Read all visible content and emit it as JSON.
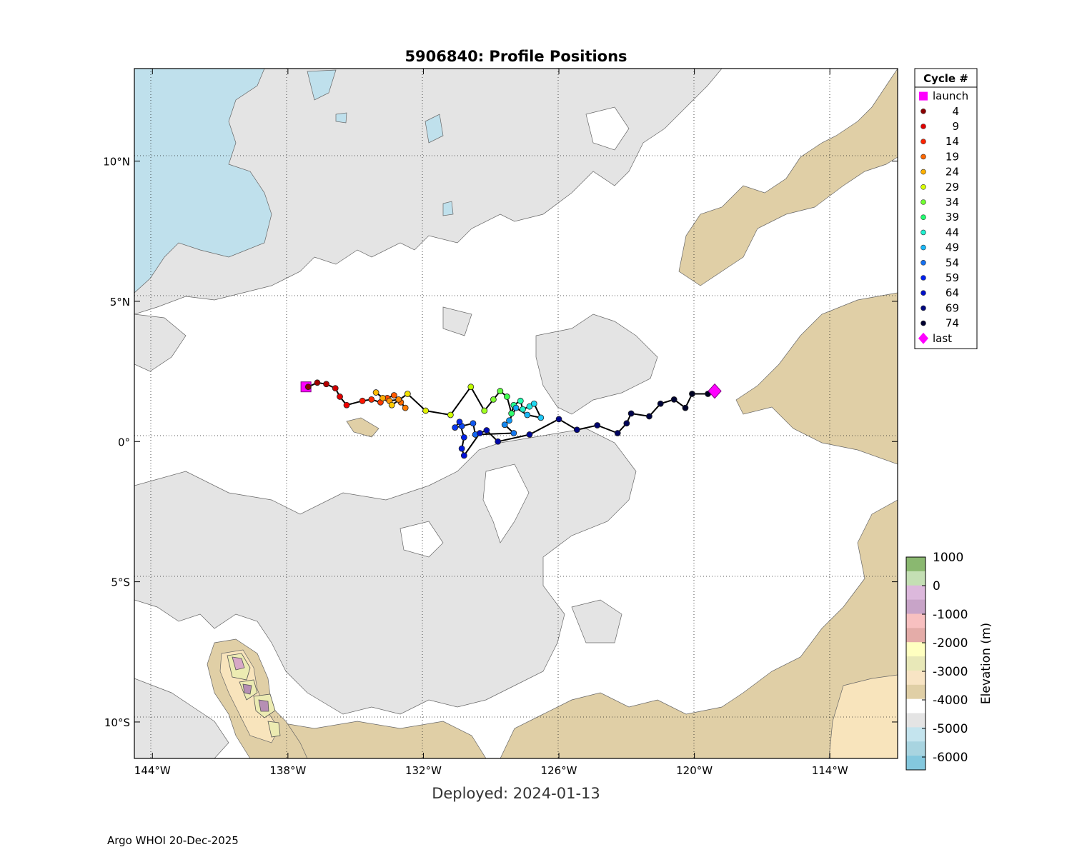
{
  "title": "5906840: Profile Positions",
  "subtitle": "Deployed: 2024-01-13",
  "footer": "Argo WHOI 20-Dec-2025",
  "map": {
    "lon_range": [
      -144.8,
      -111.0
    ],
    "lat_range": [
      -11.3,
      13.3
    ],
    "lon_ticks": [
      {
        "value": -144,
        "label": "144°W"
      },
      {
        "value": -138,
        "label": "138°W"
      },
      {
        "value": -132,
        "label": "132°W"
      },
      {
        "value": -126,
        "label": "126°W"
      },
      {
        "value": -120,
        "label": "120°W"
      },
      {
        "value": -114,
        "label": "114°W"
      }
    ],
    "lat_ticks": [
      {
        "value": 10,
        "label": "10°N"
      },
      {
        "value": 5,
        "label": "5°N"
      },
      {
        "value": 0,
        "label": "0°"
      },
      {
        "value": -5,
        "label": "5°S"
      },
      {
        "value": -10,
        "label": "10°S"
      }
    ],
    "grid": "dotted",
    "colors": {
      "deep_blue": "#bfe0ec",
      "gray": "#e4e4e4",
      "shallow_tan": "#e0cfa6",
      "light_tan": "#f8e4bc",
      "seamount_yellow": "#ecebb2",
      "seamount_pink": "#d7a8c6",
      "seamount_purple": "#b68fb4"
    }
  },
  "track": {
    "launch": {
      "lon": -137.2,
      "lat": 1.95
    },
    "last": {
      "lon": -119.1,
      "lat": 1.8
    },
    "points": [
      {
        "lon": -137.1,
        "lat": 1.95,
        "color": "#8b0000"
      },
      {
        "lon": -136.7,
        "lat": 2.1,
        "color": "#a00000"
      },
      {
        "lon": -136.3,
        "lat": 2.05,
        "color": "#b40000"
      },
      {
        "lon": -135.9,
        "lat": 1.9,
        "color": "#d00000"
      },
      {
        "lon": -135.7,
        "lat": 1.6,
        "color": "#e00000"
      },
      {
        "lon": -135.4,
        "lat": 1.3,
        "color": "#f00000"
      },
      {
        "lon": -134.7,
        "lat": 1.45,
        "color": "#ff1500"
      },
      {
        "lon": -134.3,
        "lat": 1.5,
        "color": "#ff2a00"
      },
      {
        "lon": -133.9,
        "lat": 1.4,
        "color": "#ff3a00"
      },
      {
        "lon": -133.6,
        "lat": 1.55,
        "color": "#ff4a00"
      },
      {
        "lon": -133.3,
        "lat": 1.65,
        "color": "#ff5a00"
      },
      {
        "lon": -133.0,
        "lat": 1.4,
        "color": "#ff6a00"
      },
      {
        "lon": -132.8,
        "lat": 1.2,
        "color": "#ff7a00"
      },
      {
        "lon": -133.1,
        "lat": 1.5,
        "color": "#ff8a00"
      },
      {
        "lon": -133.5,
        "lat": 1.45,
        "color": "#ff9a00"
      },
      {
        "lon": -133.8,
        "lat": 1.55,
        "color": "#ffaa00"
      },
      {
        "lon": -134.1,
        "lat": 1.75,
        "color": "#ffbb00"
      },
      {
        "lon": -133.4,
        "lat": 1.3,
        "color": "#ffcc00"
      },
      {
        "lon": -132.7,
        "lat": 1.7,
        "color": "#f0e000"
      },
      {
        "lon": -131.9,
        "lat": 1.1,
        "color": "#e0f000"
      },
      {
        "lon": -130.8,
        "lat": 0.95,
        "color": "#d0ff00"
      },
      {
        "lon": -129.9,
        "lat": 1.95,
        "color": "#bfff00"
      },
      {
        "lon": -129.3,
        "lat": 1.1,
        "color": "#a0ff20"
      },
      {
        "lon": -128.9,
        "lat": 1.5,
        "color": "#80ff30"
      },
      {
        "lon": -128.6,
        "lat": 1.8,
        "color": "#60ff40"
      },
      {
        "lon": -128.3,
        "lat": 1.6,
        "color": "#40ff50"
      },
      {
        "lon": -128.1,
        "lat": 1.0,
        "color": "#30ff70"
      },
      {
        "lon": -128.0,
        "lat": 1.3,
        "color": "#20ff90"
      },
      {
        "lon": -127.7,
        "lat": 1.45,
        "color": "#20ffb0"
      },
      {
        "lon": -127.6,
        "lat": 1.15,
        "color": "#20f0c8"
      },
      {
        "lon": -127.3,
        "lat": 1.25,
        "color": "#20e8e0"
      },
      {
        "lon": -127.1,
        "lat": 1.35,
        "color": "#20d8f0"
      },
      {
        "lon": -126.8,
        "lat": 0.85,
        "color": "#20c8f8"
      },
      {
        "lon": -127.4,
        "lat": 0.95,
        "color": "#18b8f8"
      },
      {
        "lon": -127.9,
        "lat": 1.2,
        "color": "#10a8f8"
      },
      {
        "lon": -128.2,
        "lat": 0.75,
        "color": "#1098f8"
      },
      {
        "lon": -128.4,
        "lat": 0.6,
        "color": "#1488f0"
      },
      {
        "lon": -128.0,
        "lat": 0.3,
        "color": "#1478f0"
      },
      {
        "lon": -129.7,
        "lat": 0.25,
        "color": "#1468f0"
      },
      {
        "lon": -129.8,
        "lat": 0.65,
        "color": "#1058f0"
      },
      {
        "lon": -130.3,
        "lat": 0.55,
        "color": "#0c48f0"
      },
      {
        "lon": -130.6,
        "lat": 0.5,
        "color": "#0838f0"
      },
      {
        "lon": -130.4,
        "lat": 0.7,
        "color": "#0528f0"
      },
      {
        "lon": -130.2,
        "lat": 0.15,
        "color": "#0020e8"
      },
      {
        "lon": -130.3,
        "lat": -0.25,
        "color": "#0018e0"
      },
      {
        "lon": -130.2,
        "lat": -0.5,
        "color": "#0010d8"
      },
      {
        "lon": -129.5,
        "lat": 0.3,
        "color": "#0010c8"
      },
      {
        "lon": -129.2,
        "lat": 0.4,
        "color": "#000cb8"
      },
      {
        "lon": -128.7,
        "lat": 0.0,
        "color": "#0008a8"
      },
      {
        "lon": -127.3,
        "lat": 0.25,
        "color": "#000898"
      },
      {
        "lon": -126.0,
        "lat": 0.8,
        "color": "#00068a"
      },
      {
        "lon": -125.2,
        "lat": 0.42,
        "color": "#00057c"
      },
      {
        "lon": -124.3,
        "lat": 0.58,
        "color": "#00046e"
      },
      {
        "lon": -123.4,
        "lat": 0.3,
        "color": "#000460"
      },
      {
        "lon": -123.0,
        "lat": 0.65,
        "color": "#000456"
      },
      {
        "lon": -122.8,
        "lat": 1.0,
        "color": "#00044c"
      },
      {
        "lon": -122.0,
        "lat": 0.9,
        "color": "#000442"
      },
      {
        "lon": -121.5,
        "lat": 1.35,
        "color": "#00043a"
      },
      {
        "lon": -120.9,
        "lat": 1.5,
        "color": "#000432"
      },
      {
        "lon": -120.4,
        "lat": 1.2,
        "color": "#00042a"
      },
      {
        "lon": -120.1,
        "lat": 1.7,
        "color": "#000424"
      },
      {
        "lon": -119.4,
        "lat": 1.7,
        "color": "#000020"
      }
    ]
  },
  "legend": {
    "title": "Cycle #",
    "items": [
      {
        "label": "launch",
        "marker": "square",
        "color": "#ff00ff"
      },
      {
        "label": "4",
        "marker": "dot",
        "color": "#8b0000"
      },
      {
        "label": "9",
        "marker": "dot",
        "color": "#e00000"
      },
      {
        "label": "14",
        "marker": "dot",
        "color": "#ff2200"
      },
      {
        "label": "19",
        "marker": "dot",
        "color": "#ff6600"
      },
      {
        "label": "24",
        "marker": "dot",
        "color": "#ffb000"
      },
      {
        "label": "29",
        "marker": "dot",
        "color": "#d8ff00"
      },
      {
        "label": "34",
        "marker": "dot",
        "color": "#70ff30"
      },
      {
        "label": "39",
        "marker": "dot",
        "color": "#20ff70"
      },
      {
        "label": "44",
        "marker": "dot",
        "color": "#20f0d0"
      },
      {
        "label": "49",
        "marker": "dot",
        "color": "#18b8f8"
      },
      {
        "label": "54",
        "marker": "dot",
        "color": "#1470f0"
      },
      {
        "label": "59",
        "marker": "dot",
        "color": "#0020f0"
      },
      {
        "label": "64",
        "marker": "dot",
        "color": "#0010c8"
      },
      {
        "label": "69",
        "marker": "dot",
        "color": "#000880"
      },
      {
        "label": "74",
        "marker": "dot",
        "color": "#000030"
      },
      {
        "label": "last",
        "marker": "diamond",
        "color": "#ff00ff"
      }
    ]
  },
  "colorbar": {
    "label": "Elevation (m)",
    "tick_labels": [
      "1000",
      "0",
      "-1000",
      "-2000",
      "-3000",
      "-4000",
      "-5000",
      "-6000"
    ],
    "colors_top_to_bottom": [
      "#8ab870",
      "#c4dfb4",
      "#dcb8dc",
      "#c8a4c8",
      "#f8c0c0",
      "#e4aca8",
      "#ffffc0",
      "#e8e8b8",
      "#f8e4c4",
      "#e0cfa6",
      "#ffffff",
      "#e4e4e4",
      "#c4e4ee",
      "#a8d4e0",
      "#84c8de"
    ]
  }
}
